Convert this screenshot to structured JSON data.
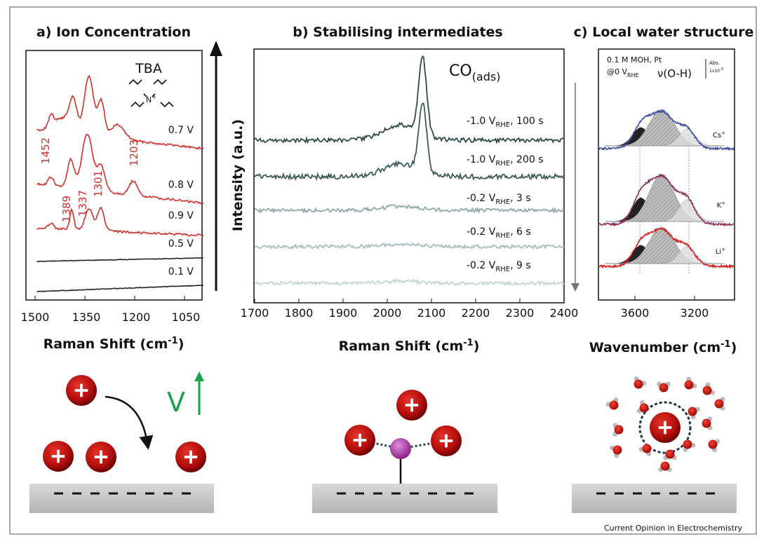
{
  "panel_a": {
    "title": "a) Ion Concentration",
    "molecule": "TBA",
    "nitrogen": "N",
    "charge": "+",
    "traces": [
      "0.7 V",
      "0.8 V",
      "0.9 V",
      "0.5 V",
      "0.1 V"
    ],
    "peaks": [
      "1452",
      "1389",
      "1337",
      "1301",
      "1203"
    ],
    "x_ticks": [
      "1500",
      "1350",
      "1200",
      "1050"
    ],
    "x_label": {
      "text": "Raman Shift (cm",
      "sup": "-1",
      "end": ")"
    },
    "potential_symbol": "V"
  },
  "panel_b": {
    "title": "b) Stabilising intermediates",
    "y_label": "Intensity (a.u.)",
    "species": {
      "text": "CO",
      "sub": "(ads)"
    },
    "traces": [
      {
        "potential": "-1.0 V",
        "sub": "RHE",
        "time": ", 100 s"
      },
      {
        "potential": "-1.0 V",
        "sub": "RHE",
        "time": ", 200 s"
      },
      {
        "potential": "-0.2 V",
        "sub": "RHE",
        "time": ", 3 s"
      },
      {
        "potential": "-0.2 V",
        "sub": "RHE",
        "time": ", 6 s"
      },
      {
        "potential": "-0.2 V",
        "sub": "RHE",
        "time": ", 9 s"
      }
    ],
    "x_ticks": [
      "1700",
      "1800",
      "1900",
      "2000",
      "2100",
      "2200",
      "2300",
      "2400"
    ],
    "x_label": {
      "text": "Raman Shift (cm",
      "sup": "-1",
      "end": ")"
    }
  },
  "panel_c": {
    "title": "c) Local water structure",
    "conditions": "0.1 M MOH, Pt",
    "potential": {
      "text": "@0 V",
      "sub": "RHE"
    },
    "band": "ν(O-H)",
    "scale": {
      "top": "Abs.",
      "bottom": "1x10",
      "sup": "-3"
    },
    "cations": [
      {
        "text": "Cs",
        "sup": "+"
      },
      {
        "text": "K",
        "sup": "+"
      },
      {
        "text": "Li",
        "sup": "+"
      }
    ],
    "x_ticks": [
      "3600",
      "3200"
    ],
    "x_label": {
      "text": "Wavenumber (cm",
      "sup": "-1",
      "end": ")"
    }
  },
  "footer": "Current Opinion in Electrochemistry"
}
